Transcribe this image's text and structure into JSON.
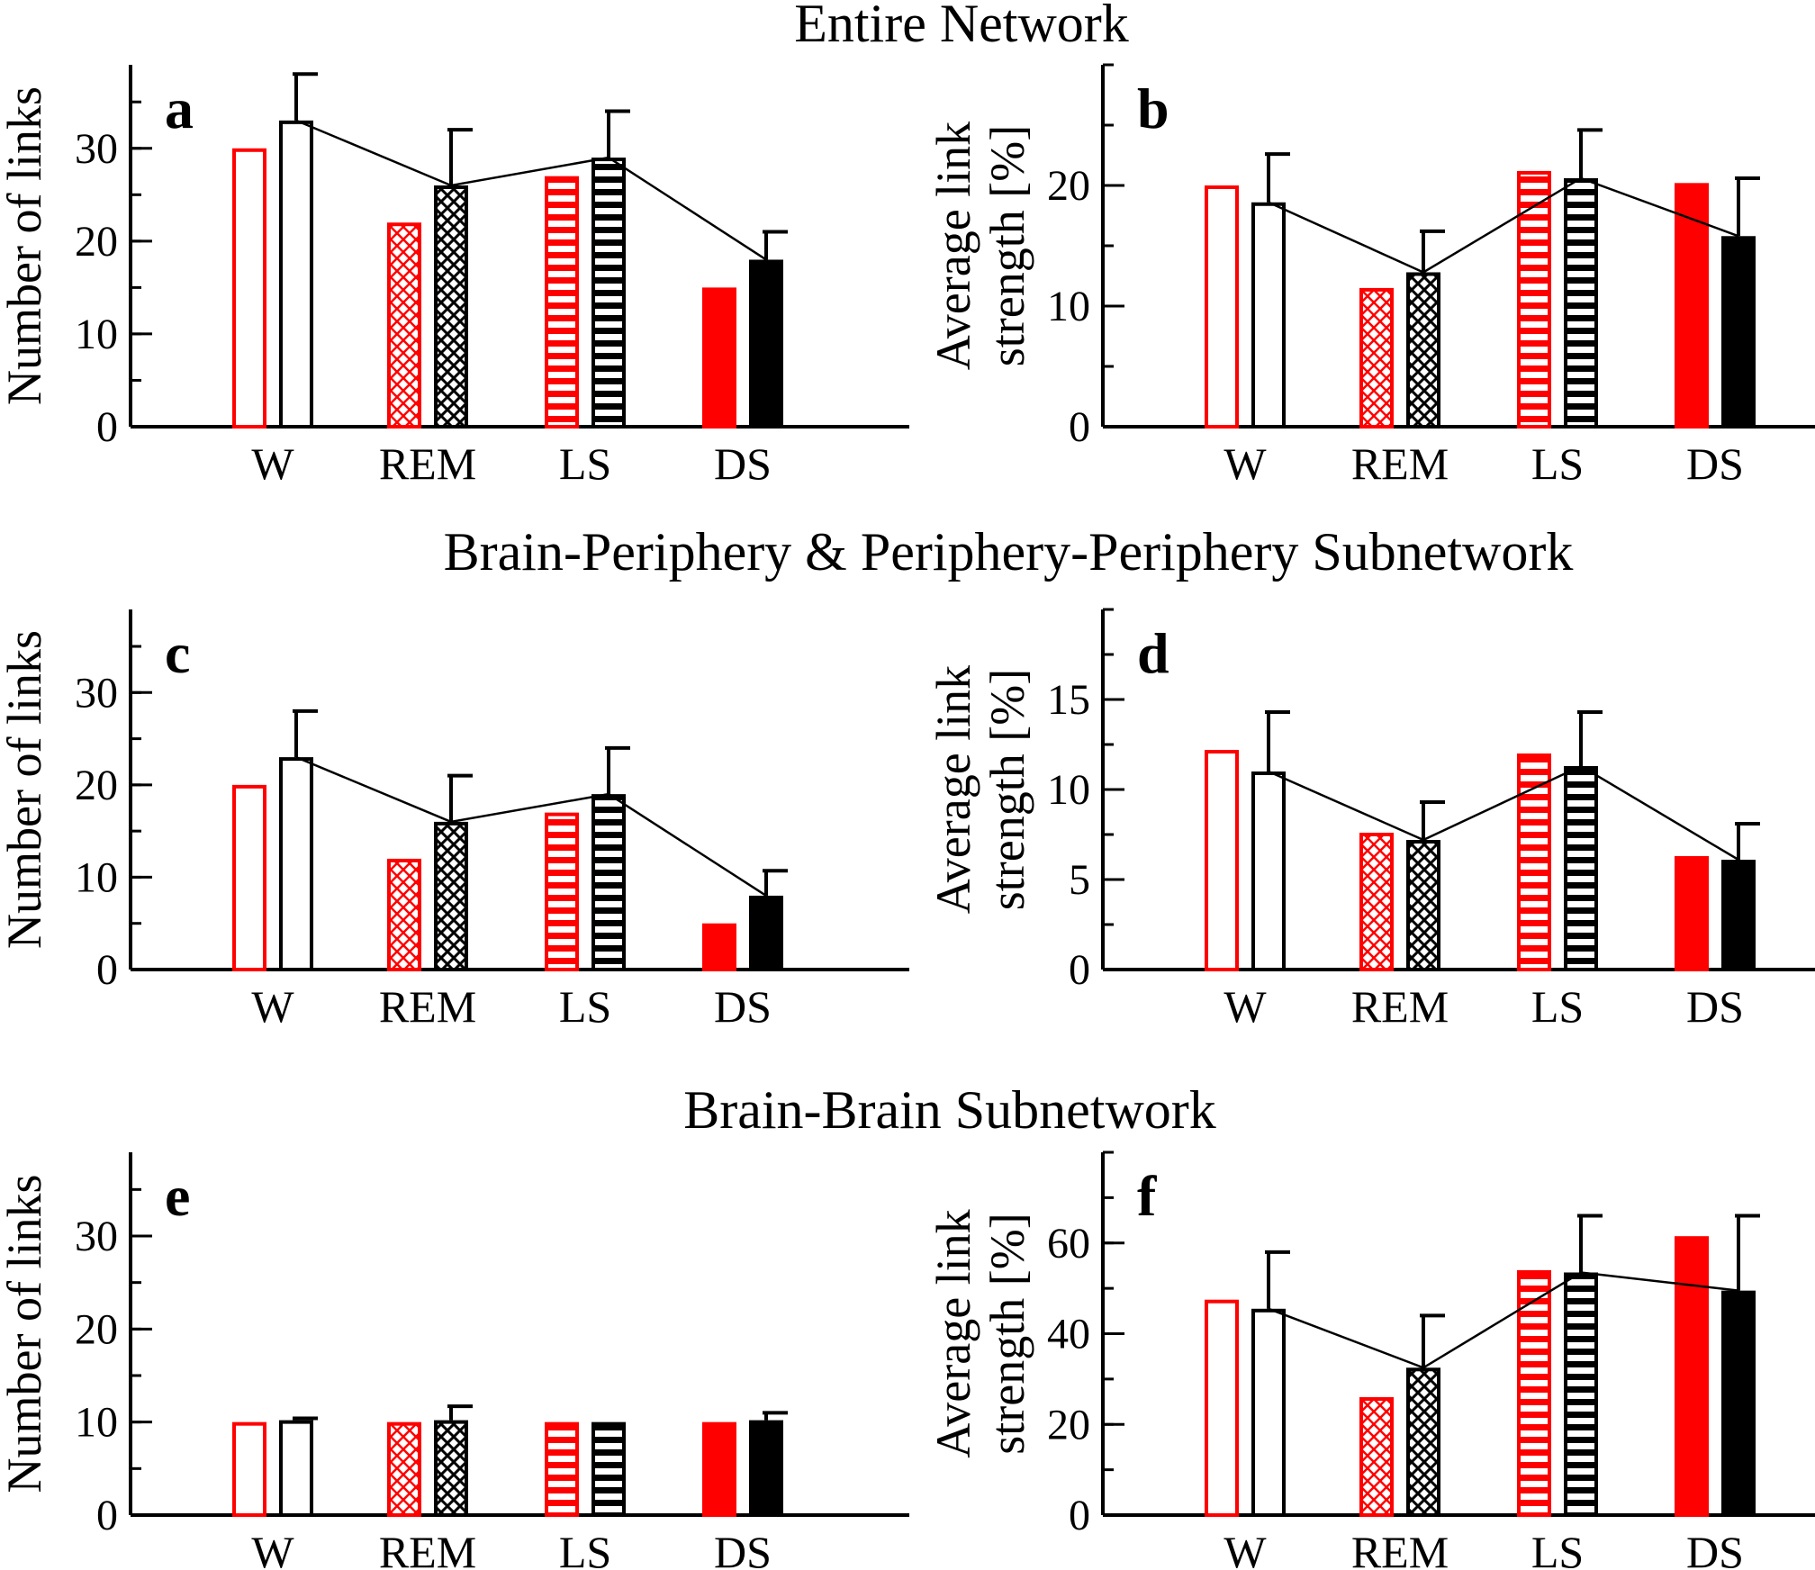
{
  "sections": [
    {
      "title": "Entire Network"
    },
    {
      "title": "Brain-Periphery & Periphery-Periphery Subnetwork"
    },
    {
      "title": "Brain-Brain Subnetwork"
    }
  ],
  "colors": {
    "red": "#ff0000",
    "black": "#000000"
  },
  "bar_patterns": {
    "W": "open",
    "REM": "checkered",
    "LS": "horizontal-stripes",
    "DS": "solid"
  },
  "chart_data": [
    {
      "panel": "a",
      "type": "bar",
      "section": 0,
      "ylabel": [
        "Number of links"
      ],
      "categories": [
        "W",
        "REM",
        "LS",
        "DS"
      ],
      "ylim": [
        0,
        39
      ],
      "yticks": [
        0,
        10,
        20,
        30
      ],
      "minor_step": 5,
      "series": [
        {
          "color": "red",
          "values": [
            30,
            22,
            27,
            15
          ]
        },
        {
          "color": "black",
          "values": [
            33,
            26,
            29,
            18
          ],
          "errors": [
            5,
            6,
            5,
            3
          ],
          "connected": true
        }
      ]
    },
    {
      "panel": "b",
      "type": "bar",
      "section": 0,
      "ylabel": [
        "Average link",
        "strength [%]"
      ],
      "categories": [
        "W",
        "REM",
        "LS",
        "DS"
      ],
      "ylim": [
        0,
        30
      ],
      "yticks": [
        0,
        10,
        20
      ],
      "minor_step": 5,
      "series": [
        {
          "color": "red",
          "values": [
            20,
            11.5,
            21.2,
            20.2
          ]
        },
        {
          "color": "black",
          "values": [
            18.6,
            12.8,
            20.6,
            15.8
          ],
          "errors": [
            4,
            3.4,
            4,
            4.8
          ],
          "connected": true
        }
      ]
    },
    {
      "panel": "c",
      "type": "bar",
      "section": 1,
      "ylabel": [
        "Number of links"
      ],
      "categories": [
        "W",
        "REM",
        "LS",
        "DS"
      ],
      "ylim": [
        0,
        39
      ],
      "yticks": [
        0,
        10,
        20,
        30
      ],
      "minor_step": 5,
      "series": [
        {
          "color": "red",
          "values": [
            20,
            12,
            17,
            5
          ]
        },
        {
          "color": "black",
          "values": [
            23,
            16,
            19,
            8
          ],
          "errors": [
            5,
            5,
            5,
            2.7
          ],
          "connected": true
        }
      ]
    },
    {
      "panel": "d",
      "type": "bar",
      "section": 1,
      "ylabel": [
        "Average link",
        "strength [%]"
      ],
      "categories": [
        "W",
        "REM",
        "LS",
        "DS"
      ],
      "ylim": [
        0,
        20
      ],
      "yticks": [
        0,
        5,
        10,
        15
      ],
      "minor_step": 2.5,
      "series": [
        {
          "color": "red",
          "values": [
            12.2,
            7.6,
            12,
            6.3
          ]
        },
        {
          "color": "black",
          "values": [
            11,
            7.2,
            11.3,
            6.1
          ],
          "errors": [
            3.3,
            2.1,
            3,
            2
          ]
        },
        {
          "color": "black",
          "values": [
            11,
            7.2,
            11.3,
            6.1
          ],
          "errors": [
            3.3,
            2.1,
            3,
            2
          ],
          "connected": true
        }
      ]
    },
    {
      "panel": "e",
      "type": "bar",
      "section": 2,
      "ylabel": [
        "Number of links"
      ],
      "categories": [
        "W",
        "REM",
        "LS",
        "DS"
      ],
      "ylim": [
        0,
        39
      ],
      "yticks": [
        0,
        10,
        20,
        30
      ],
      "minor_step": 5,
      "series": [
        {
          "color": "red",
          "values": [
            10,
            10,
            10,
            10
          ]
        },
        {
          "color": "black",
          "values": [
            10.2,
            10.2,
            10,
            10.2
          ],
          "errors": [
            0.2,
            1.5,
            0,
            0.8
          ],
          "connected": false
        }
      ]
    },
    {
      "panel": "f",
      "type": "bar",
      "section": 2,
      "ylabel": [
        "Average link",
        "strength [%]"
      ],
      "categories": [
        "W",
        "REM",
        "LS",
        "DS"
      ],
      "ylim": [
        0,
        80
      ],
      "yticks": [
        0,
        20,
        40,
        60
      ],
      "minor_step": 10,
      "series": [
        {
          "color": "red",
          "values": [
            47.5,
            26,
            54,
            61.5
          ]
        },
        {
          "color": "black",
          "values": [
            45.5,
            32.5,
            53.5,
            49.5
          ],
          "errors": [
            12.5,
            11.5,
            12.5,
            16.5
          ],
          "connected": true
        }
      ]
    }
  ]
}
